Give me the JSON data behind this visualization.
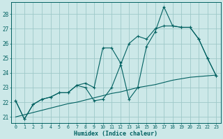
{
  "xlabel": "Humidex (Indice chaleur)",
  "bg_color": "#cce8e8",
  "grid_color": "#9ec8c8",
  "line_color": "#006060",
  "xlim_min": -0.5,
  "xlim_max": 23.5,
  "ylim_min": 20.6,
  "ylim_max": 28.8,
  "yticks": [
    21,
    22,
    23,
    24,
    25,
    26,
    27,
    28
  ],
  "xticks": [
    0,
    1,
    2,
    3,
    4,
    5,
    6,
    7,
    8,
    9,
    10,
    11,
    12,
    13,
    14,
    15,
    16,
    17,
    18,
    19,
    20,
    21,
    22,
    23
  ],
  "s1_x": [
    0,
    1,
    2,
    3,
    4,
    5,
    6,
    7,
    8,
    9,
    10,
    11,
    12,
    13,
    14,
    15,
    16,
    17,
    18,
    19,
    20,
    21,
    22,
    23
  ],
  "s1_y": [
    22.1,
    20.85,
    21.85,
    22.2,
    22.35,
    22.65,
    22.65,
    23.15,
    23.3,
    23.0,
    25.7,
    25.7,
    24.7,
    22.2,
    23.0,
    25.8,
    26.8,
    28.5,
    27.2,
    27.1,
    27.1,
    26.3,
    25.0,
    23.8
  ],
  "s2_x": [
    0,
    1,
    2,
    3,
    4,
    5,
    6,
    7,
    8,
    9,
    10,
    11,
    12,
    13,
    14,
    15,
    16,
    17,
    18,
    19,
    20,
    21,
    22,
    23
  ],
  "s2_y": [
    22.1,
    20.85,
    21.85,
    22.2,
    22.35,
    22.65,
    22.65,
    23.15,
    23.0,
    22.1,
    22.2,
    23.0,
    24.5,
    26.0,
    26.5,
    26.3,
    27.0,
    27.2,
    27.2,
    27.1,
    27.1,
    26.3,
    25.0,
    23.8
  ],
  "s3_x": [
    0,
    1,
    2,
    3,
    4,
    5,
    6,
    7,
    8,
    9,
    10,
    11,
    12,
    13,
    14,
    15,
    16,
    17,
    18,
    19,
    20,
    21,
    22,
    23
  ],
  "s3_y": [
    21.0,
    21.15,
    21.3,
    21.45,
    21.6,
    21.75,
    21.9,
    22.0,
    22.15,
    22.3,
    22.45,
    22.6,
    22.7,
    22.85,
    23.0,
    23.1,
    23.2,
    23.35,
    23.5,
    23.6,
    23.7,
    23.75,
    23.8,
    23.85
  ]
}
